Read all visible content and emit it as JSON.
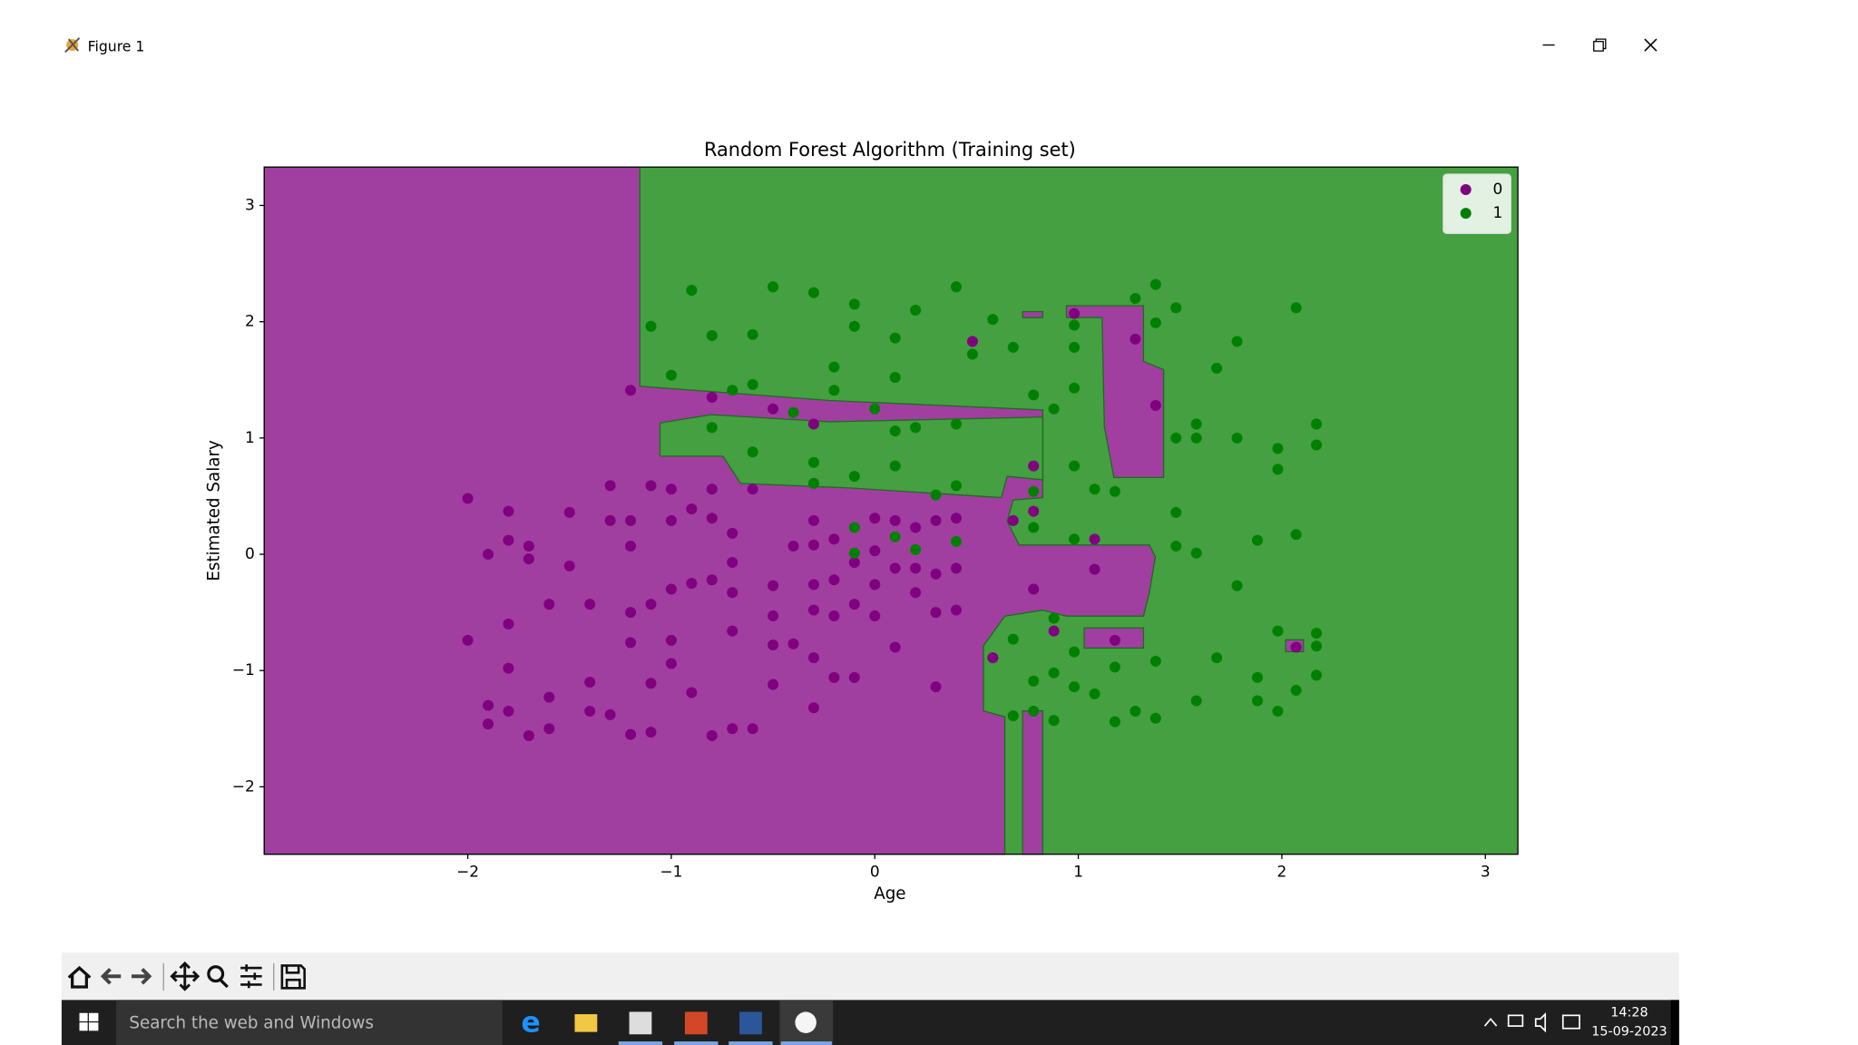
{
  "window": {
    "title": "Figure 1"
  },
  "chart_data": {
    "type": "scatter",
    "title": "Random Forest Algorithm (Training set)",
    "x_label": "Age",
    "y_label": "Estimated Salary",
    "xlim": [
      -3.0,
      3.16
    ],
    "ylim": [
      -2.58,
      3.33
    ],
    "xticks": [
      {
        "value": -2,
        "label": "−2"
      },
      {
        "value": -1,
        "label": "−1"
      },
      0,
      1,
      2,
      3
    ],
    "yticks": [
      {
        "value": -2,
        "label": "−2"
      },
      {
        "value": -1,
        "label": "−1"
      },
      0,
      1,
      2,
      3
    ],
    "grid": false,
    "legend": "upper right",
    "series": [
      {
        "name": "0",
        "color": "#800080",
        "x": [
          -2.0,
          -2.0,
          -1.9,
          -1.9,
          -1.9,
          -1.8,
          -1.8,
          -1.8,
          -1.8,
          -1.8,
          -1.7,
          -1.7,
          -1.7,
          -1.6,
          -1.6,
          -1.6,
          -1.5,
          -1.5,
          -1.4,
          -1.4,
          -1.4,
          -1.3,
          -1.3,
          -1.3,
          -1.2,
          -1.2,
          -1.2,
          -1.2,
          -1.2,
          -1.2,
          -1.1,
          -1.1,
          -1.1,
          -1.1,
          -1.0,
          -1.0,
          -1.0,
          -1.0,
          -1.0,
          -0.9,
          -0.9,
          -0.9,
          -0.8,
          -0.8,
          -0.8,
          -0.8,
          -0.8,
          -0.7,
          -0.7,
          -0.7,
          -0.7,
          -0.7,
          -0.6,
          -0.6,
          -0.5,
          -0.5,
          -0.5,
          -0.5,
          -0.5,
          -0.4,
          -0.4,
          -0.3,
          -0.3,
          -0.3,
          -0.3,
          -0.3,
          -0.3,
          -0.3,
          -0.2,
          -0.2,
          -0.2,
          -0.2,
          -0.1,
          -0.1,
          -0.1,
          0.0,
          0.0,
          0.0,
          0.0,
          0.1,
          0.1,
          0.1,
          0.2,
          0.2,
          0.2,
          0.3,
          0.3,
          0.3,
          0.3,
          0.4,
          0.4,
          0.4,
          0.48,
          0.58,
          0.68,
          0.78,
          0.78,
          0.78,
          0.88,
          0.98,
          1.08,
          1.08,
          1.18,
          1.28,
          1.38,
          2.07
        ],
        "values": [
          0.48,
          -0.74,
          0.0,
          -1.3,
          -1.46,
          0.37,
          0.12,
          -0.6,
          -0.98,
          -1.35,
          0.07,
          -0.04,
          -1.56,
          -0.43,
          -1.23,
          -1.5,
          0.36,
          -0.1,
          -0.43,
          -1.1,
          -1.35,
          0.59,
          0.29,
          -1.38,
          0.29,
          0.07,
          -0.5,
          -0.76,
          -1.55,
          1.41,
          0.59,
          -0.43,
          -1.11,
          -1.53,
          0.56,
          0.29,
          -0.3,
          -0.74,
          -0.94,
          0.39,
          -0.25,
          -1.19,
          0.56,
          0.31,
          -0.22,
          -1.56,
          1.35,
          0.18,
          -0.07,
          -0.33,
          -0.66,
          -1.5,
          0.56,
          -1.5,
          -0.27,
          -0.53,
          -0.78,
          -1.12,
          1.25,
          0.07,
          -0.77,
          0.29,
          0.08,
          -0.26,
          -0.48,
          -0.89,
          -1.32,
          1.12,
          0.13,
          -0.22,
          -0.53,
          -1.06,
          -0.07,
          -0.43,
          -1.06,
          0.31,
          0.03,
          -0.26,
          -0.53,
          -0.8,
          -0.12,
          0.29,
          0.23,
          -0.12,
          -0.33,
          0.29,
          -0.17,
          -0.5,
          -1.14,
          0.31,
          -0.12,
          -0.48,
          1.83,
          -0.89,
          0.29,
          0.76,
          0.37,
          -0.3,
          -0.66,
          2.07,
          0.13,
          -0.13,
          -0.74,
          1.85,
          1.28,
          -0.8
        ]
      },
      {
        "name": "1",
        "color": "#008000",
        "x": [
          -1.1,
          -1.0,
          -0.9,
          -0.8,
          -0.8,
          -0.7,
          -0.6,
          -0.6,
          -0.6,
          -0.5,
          -0.4,
          -0.3,
          -0.3,
          -0.3,
          -0.2,
          -0.2,
          -0.1,
          -0.1,
          -0.1,
          -0.1,
          -0.1,
          0.0,
          0.1,
          0.1,
          0.1,
          0.1,
          0.1,
          0.2,
          0.2,
          0.2,
          0.3,
          0.4,
          0.4,
          0.4,
          0.4,
          0.48,
          0.58,
          0.68,
          0.68,
          0.68,
          0.78,
          0.78,
          0.78,
          0.78,
          0.78,
          0.88,
          0.88,
          0.88,
          0.88,
          0.98,
          0.98,
          0.98,
          0.98,
          0.98,
          0.98,
          0.98,
          1.08,
          1.08,
          1.18,
          1.18,
          1.18,
          1.28,
          1.28,
          1.38,
          1.38,
          1.38,
          1.38,
          1.48,
          1.48,
          1.48,
          1.48,
          1.58,
          1.58,
          1.58,
          1.58,
          1.68,
          1.68,
          1.78,
          1.78,
          1.78,
          1.88,
          1.88,
          1.88,
          1.98,
          1.98,
          1.98,
          1.98,
          2.07,
          2.07,
          2.07,
          2.17,
          2.17,
          2.17,
          2.17,
          2.17
        ],
        "values": [
          1.96,
          1.54,
          2.27,
          1.88,
          1.09,
          1.41,
          1.89,
          1.46,
          0.88,
          2.3,
          1.22,
          2.25,
          0.79,
          0.61,
          1.61,
          1.41,
          2.15,
          1.96,
          0.67,
          0.23,
          0.01,
          1.25,
          1.86,
          1.52,
          1.06,
          0.76,
          0.15,
          2.1,
          1.09,
          0.04,
          0.51,
          2.3,
          1.12,
          0.59,
          0.11,
          1.72,
          2.02,
          1.78,
          -0.73,
          -1.39,
          1.37,
          0.54,
          0.23,
          -1.09,
          -1.35,
          1.25,
          -0.55,
          -1.02,
          -1.43,
          1.97,
          1.78,
          1.43,
          0.76,
          0.13,
          -0.84,
          -1.14,
          0.56,
          -1.2,
          0.54,
          -0.97,
          -1.44,
          2.2,
          -1.35,
          2.32,
          1.99,
          -0.92,
          -1.41,
          2.12,
          1.0,
          0.36,
          0.07,
          1.12,
          1.0,
          0.01,
          -1.26,
          1.6,
          -0.89,
          1.83,
          1.0,
          -0.27,
          0.12,
          -1.06,
          -1.26,
          0.91,
          0.73,
          -0.66,
          -1.35,
          2.12,
          0.17,
          -1.17,
          1.12,
          0.94,
          -0.68,
          -0.79,
          -1.04
        ]
      }
    ]
  },
  "taskbar": {
    "search": "Search the web and Windows",
    "time": "14:28",
    "date": "15-09-2023"
  }
}
